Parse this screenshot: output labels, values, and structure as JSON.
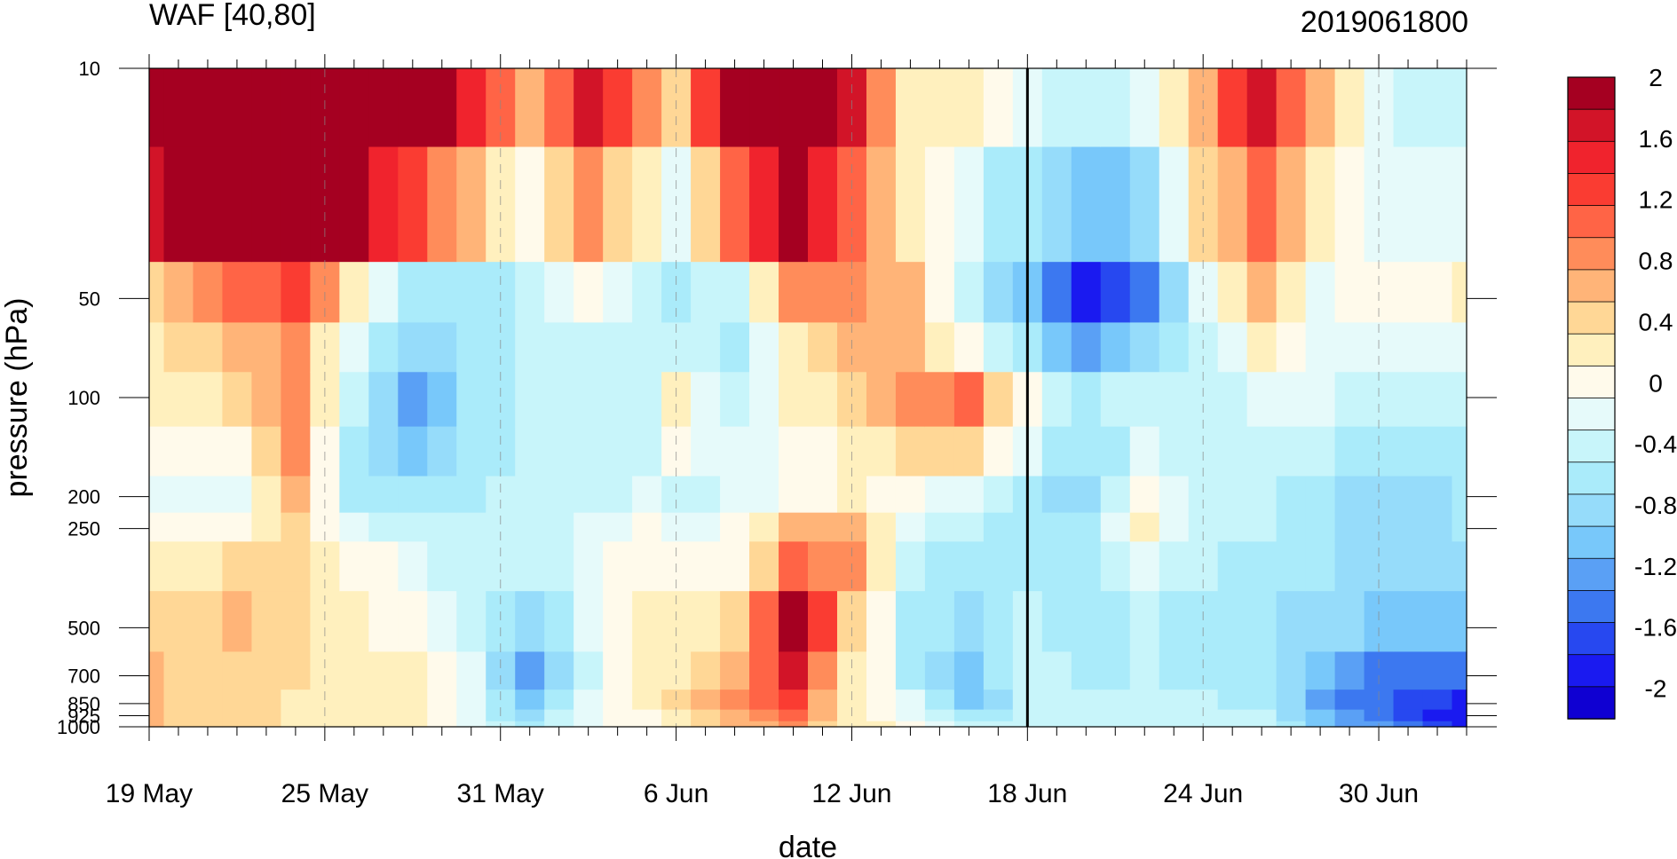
{
  "chart_data": {
    "type": "heatmap",
    "title_left": "WAF [40,80]",
    "title_right": "2019061800",
    "xlabel": "date",
    "ylabel": "pressure (hPa)",
    "x_dates": [
      "19 May",
      "20 May",
      "21 May",
      "22 May",
      "23 May",
      "24 May",
      "25 May",
      "26 May",
      "27 May",
      "28 May",
      "29 May",
      "30 May",
      "31 May",
      "1 Jun",
      "2 Jun",
      "3 Jun",
      "4 Jun",
      "5 Jun",
      "6 Jun",
      "7 Jun",
      "8 Jun",
      "9 Jun",
      "10 Jun",
      "11 Jun",
      "12 Jun",
      "13 Jun",
      "14 Jun",
      "15 Jun",
      "16 Jun",
      "17 Jun",
      "18 Jun",
      "19 Jun",
      "20 Jun",
      "21 Jun",
      "22 Jun",
      "23 Jun",
      "24 Jun",
      "25 Jun",
      "26 Jun",
      "27 Jun",
      "28 Jun",
      "29 Jun",
      "30 Jun",
      "1 Jul",
      "2 Jul",
      "3 Jul"
    ],
    "x_tick_labels": [
      "19 May",
      "25 May",
      "31 May",
      "6 Jun",
      "12 Jun",
      "18 Jun",
      "24 Jun",
      "30 Jun"
    ],
    "x_tick_positions": [
      "19 May",
      "25 May",
      "31 May",
      "6 Jun",
      "12 Jun",
      "18 Jun",
      "24 Jun",
      "30 Jun"
    ],
    "pressure_levels": [
      10,
      30,
      50,
      70,
      100,
      150,
      200,
      250,
      300,
      500,
      700,
      850,
      925,
      1000
    ],
    "y_tick_labels": [
      "10",
      "50",
      "100",
      "200",
      "250",
      "500",
      "700",
      "850",
      "925",
      "1000"
    ],
    "y_tick_values": [
      10,
      50,
      100,
      200,
      250,
      500,
      700,
      850,
      925,
      1000
    ],
    "y_scale": "log",
    "y_reversed": true,
    "xlim": [
      "19 May",
      "3 Jul"
    ],
    "ylim": [
      1000,
      10
    ],
    "vertical_line_at": "18 Jun",
    "grid": "dashed vertical lines at labelled dates",
    "colorbar": {
      "placement": "right",
      "levels": [
        -2.2,
        -2.0,
        -1.8,
        -1.6,
        -1.4,
        -1.2,
        -1.0,
        -0.8,
        -0.6,
        -0.4,
        -0.2,
        0.0,
        0.2,
        0.4,
        0.6,
        0.8,
        1.0,
        1.2,
        1.4,
        1.6,
        1.8,
        2.0,
        2.2
      ],
      "colors": [
        "#0f00d2",
        "#1a1af0",
        "#2748f0",
        "#3c78f0",
        "#5aa0f5",
        "#78c8fa",
        "#96dcfa",
        "#aaebfa",
        "#c8f5fa",
        "#e6fafa",
        "#fffaeb",
        "#fff0be",
        "#ffd796",
        "#ffb478",
        "#ff8c5a",
        "#ff6446",
        "#fa3c32",
        "#f0232d",
        "#d21428",
        "#a50021"
      ],
      "tick_labels": [
        "2",
        "1.6",
        "1.2",
        "0.8",
        "0.4",
        "0",
        "-0.4",
        "-0.8",
        "-1.2",
        "-1.6",
        "-2"
      ],
      "tick_values": [
        2.0,
        1.6,
        1.2,
        0.8,
        0.4,
        0.0,
        -0.4,
        -0.8,
        -1.2,
        -1.6,
        -2.0
      ]
    },
    "keyframes": [
      {
        "date": "19 May",
        "values": [
          2.1,
          1.5,
          0.2,
          0.1,
          0.0,
          -0.2,
          -0.4,
          -0.2,
          0.0,
          0.3,
          0.4,
          0.4,
          0.4,
          0.4
        ]
      },
      {
        "date": "22 May",
        "values": [
          2.4,
          1.8,
          0.8,
          0.5,
          0.2,
          -0.2,
          -0.4,
          -0.2,
          0.2,
          0.4,
          0.3,
          0.3,
          0.3,
          0.3
        ]
      },
      {
        "date": "24 May",
        "values": [
          2.4,
          2.0,
          1.0,
          0.6,
          0.7,
          0.6,
          0.5,
          0.3,
          0.3,
          0.2,
          0.2,
          0.1,
          0.1,
          0.1
        ]
      },
      {
        "date": "26 May",
        "values": [
          2.4,
          1.6,
          0.2,
          -0.4,
          -0.6,
          -0.7,
          -0.6,
          -0.4,
          -0.1,
          0.0,
          0.0,
          0.1,
          0.1,
          0.1
        ]
      },
      {
        "date": "28 May",
        "values": [
          2.4,
          1.0,
          -0.8,
          -1.0,
          -1.3,
          -1.1,
          -0.8,
          -0.6,
          -0.3,
          -0.1,
          0.1,
          0.1,
          0.0,
          0.0
        ]
      },
      {
        "date": "30 May",
        "values": [
          1.2,
          0.5,
          -0.8,
          -0.8,
          -0.8,
          -0.8,
          -0.7,
          -0.6,
          -0.6,
          -0.5,
          -0.4,
          -0.3,
          -0.3,
          -0.3
        ]
      },
      {
        "date": "1 Jun",
        "values": [
          0.4,
          -0.2,
          -0.6,
          -0.6,
          -0.6,
          -0.5,
          -0.5,
          -0.5,
          -0.6,
          -0.9,
          -1.3,
          -1.2,
          -0.9,
          -0.7
        ]
      },
      {
        "date": "3 Jun",
        "values": [
          1.5,
          0.6,
          -0.2,
          -0.5,
          -0.6,
          -0.6,
          -0.6,
          -0.4,
          -0.3,
          -0.4,
          -0.5,
          -0.4,
          -0.3,
          -0.3
        ]
      },
      {
        "date": "5 Jun",
        "values": [
          0.6,
          0.0,
          -0.5,
          -0.5,
          -0.5,
          -0.5,
          -0.4,
          -0.2,
          -0.1,
          0.1,
          0.1,
          0.0,
          -0.1,
          -0.1
        ]
      },
      {
        "date": "6 Jun",
        "values": [
          0.3,
          -0.3,
          -0.7,
          -0.5,
          0.0,
          -0.2,
          -0.5,
          -0.4,
          -0.2,
          0.0,
          0.1,
          0.2,
          0.1,
          0.1
        ]
      },
      {
        "date": "8 Jun",
        "values": [
          1.8,
          0.8,
          -0.5,
          -0.7,
          -0.5,
          -0.4,
          -0.4,
          -0.2,
          -0.1,
          0.3,
          0.5,
          0.6,
          0.5,
          0.4
        ]
      },
      {
        "date": "10 Jun",
        "values": [
          2.3,
          1.8,
          0.7,
          0.2,
          0.0,
          -0.2,
          -0.1,
          0.5,
          0.8,
          1.6,
          1.4,
          1.0,
          0.8,
          0.6
        ]
      },
      {
        "date": "12 Jun",
        "values": [
          1.4,
          0.9,
          0.6,
          0.4,
          0.2,
          0.0,
          0.0,
          0.5,
          0.6,
          0.4,
          0.2,
          0.1,
          0.1,
          0.1
        ]
      },
      {
        "date": "14 Jun",
        "values": [
          0.1,
          0.1,
          0.4,
          0.5,
          0.6,
          0.3,
          -0.2,
          -0.4,
          -0.6,
          -0.7,
          -0.6,
          -0.4,
          -0.2,
          -0.1
        ]
      },
      {
        "date": "16 Jun",
        "values": [
          0.0,
          -0.4,
          -0.6,
          -0.2,
          0.8,
          0.3,
          -0.4,
          -0.6,
          -0.7,
          -0.9,
          -1.1,
          -1.2,
          -0.8,
          -0.6
        ]
      },
      {
        "date": "18 Jun",
        "values": [
          -0.3,
          -0.8,
          -1.2,
          -0.8,
          -0.2,
          -0.4,
          -0.7,
          -0.7,
          -0.7,
          -0.6,
          -0.5,
          -0.5,
          -0.5,
          -0.5
        ]
      },
      {
        "date": "20 Jun",
        "values": [
          -0.6,
          -1.2,
          -1.9,
          -1.3,
          -0.7,
          -0.8,
          -1.0,
          -0.8,
          -0.7,
          -0.8,
          -0.7,
          -0.6,
          -0.5,
          -0.5
        ]
      },
      {
        "date": "22 Jun",
        "values": [
          -0.3,
          -0.9,
          -1.5,
          -1.0,
          -0.5,
          -0.4,
          -0.2,
          0.0,
          -0.3,
          -0.6,
          -0.6,
          -0.5,
          -0.5,
          -0.5
        ]
      },
      {
        "date": "24 Jun",
        "values": [
          0.6,
          0.2,
          -0.3,
          -0.6,
          -0.6,
          -0.5,
          -0.5,
          -0.5,
          -0.6,
          -0.7,
          -0.7,
          -0.6,
          -0.5,
          -0.5
        ]
      },
      {
        "date": "26 Jun",
        "values": [
          1.4,
          0.9,
          0.6,
          0.1,
          -0.4,
          -0.5,
          -0.6,
          -0.6,
          -0.7,
          -0.8,
          -0.8,
          -0.7,
          -0.6,
          -0.5
        ]
      },
      {
        "date": "28 Jun",
        "values": [
          0.4,
          0.0,
          -0.3,
          -0.3,
          -0.4,
          -0.6,
          -0.8,
          -0.8,
          -0.8,
          -0.9,
          -1.2,
          -1.3,
          -1.2,
          -1.1
        ]
      },
      {
        "date": "30 Jun",
        "values": [
          -0.4,
          -0.3,
          -0.1,
          -0.3,
          -0.5,
          -0.8,
          -1.0,
          -0.9,
          -0.9,
          -1.1,
          -1.5,
          -1.6,
          -1.5,
          -1.4
        ]
      },
      {
        "date": "3 Jul",
        "values": [
          -0.6,
          -0.4,
          0.0,
          -0.3,
          -0.5,
          -0.7,
          -0.8,
          -0.8,
          -0.9,
          -1.2,
          -1.6,
          -1.9,
          -2.0,
          -2.0
        ]
      }
    ]
  }
}
